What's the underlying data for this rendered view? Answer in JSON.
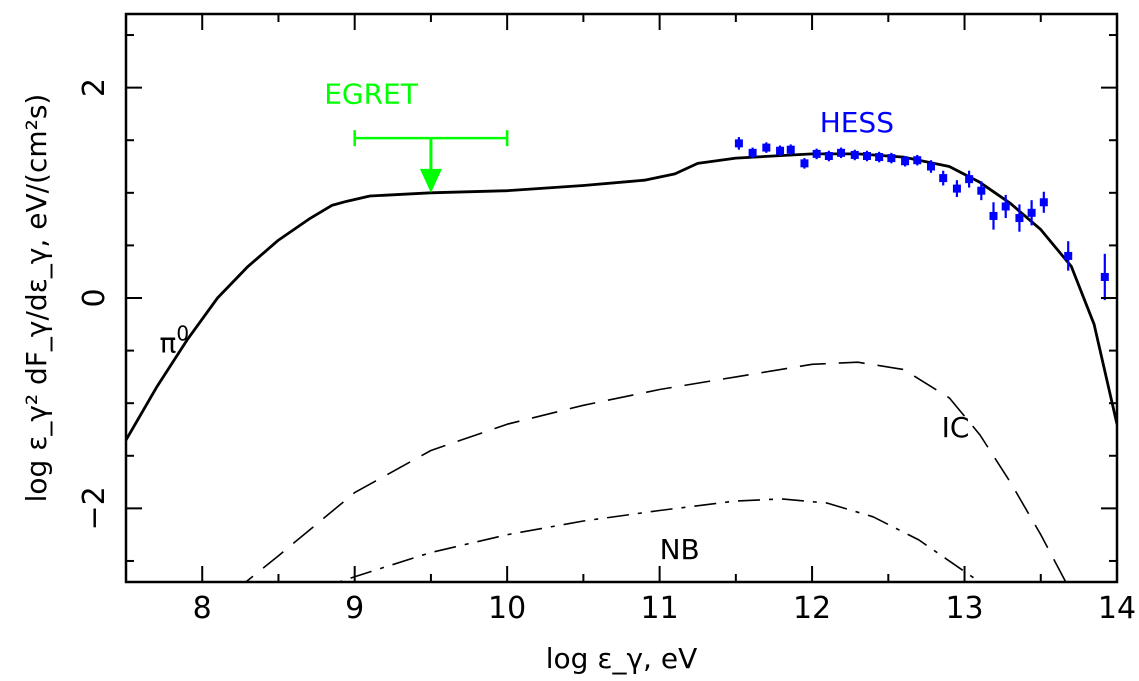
{
  "chart_data": {
    "type": "line",
    "xlabel": "log ε_γ, eV",
    "ylabel": "log ε_γ² dF_γ/dε_γ, eV/(cm²s)",
    "xlim": [
      7.5,
      14
    ],
    "ylim": [
      -2.7,
      2.7
    ],
    "x_ticks": [
      8,
      9,
      10,
      11,
      12,
      13,
      14
    ],
    "y_ticks": [
      -2,
      0,
      2
    ],
    "x_tick_labels": [
      "8",
      "9",
      "10",
      "11",
      "12",
      "13",
      "14"
    ],
    "y_tick_labels": [
      "−2",
      "0",
      "2"
    ],
    "grid": false,
    "series": [
      {
        "name": "π⁰",
        "style": "solid",
        "color": "#000000",
        "x": [
          7.5,
          7.7,
          7.9,
          8.1,
          8.3,
          8.5,
          8.7,
          8.85,
          8.95,
          9.1,
          9.5,
          10.0,
          10.5,
          10.9,
          11.1,
          11.25,
          11.5,
          12.0,
          12.3,
          12.6,
          12.9,
          13.1,
          13.3,
          13.5,
          13.7,
          13.85,
          14.0
        ],
        "y": [
          -1.35,
          -0.85,
          -0.4,
          0.0,
          0.3,
          0.55,
          0.75,
          0.88,
          0.92,
          0.97,
          1.0,
          1.02,
          1.07,
          1.12,
          1.18,
          1.28,
          1.33,
          1.37,
          1.37,
          1.34,
          1.25,
          1.1,
          0.9,
          0.65,
          0.3,
          -0.25,
          -1.2
        ]
      },
      {
        "name": "IC",
        "style": "dashed",
        "color": "#000000",
        "x": [
          8.2,
          8.5,
          9.0,
          9.5,
          10.0,
          10.5,
          11.0,
          11.5,
          12.0,
          12.3,
          12.6,
          12.9,
          13.1,
          13.3,
          13.5,
          13.7
        ],
        "y": [
          -2.8,
          -2.45,
          -1.85,
          -1.45,
          -1.2,
          -1.02,
          -0.87,
          -0.75,
          -0.63,
          -0.61,
          -0.68,
          -0.95,
          -1.3,
          -1.75,
          -2.25,
          -2.8
        ]
      },
      {
        "name": "NB",
        "style": "dashdot",
        "color": "#000000",
        "x": [
          8.7,
          9.0,
          9.5,
          10.0,
          10.5,
          11.0,
          11.5,
          11.8,
          12.1,
          12.4,
          12.7,
          13.0,
          13.2
        ],
        "y": [
          -2.8,
          -2.65,
          -2.42,
          -2.25,
          -2.12,
          -2.02,
          -1.93,
          -1.91,
          -1.95,
          -2.08,
          -2.3,
          -2.6,
          -2.8
        ]
      }
    ],
    "points": {
      "name": "HESS",
      "color": "#0000ff",
      "x": [
        11.52,
        11.61,
        11.7,
        11.79,
        11.86,
        11.95,
        12.03,
        12.11,
        12.19,
        12.28,
        12.36,
        12.44,
        12.52,
        12.61,
        12.69,
        12.78,
        12.86,
        12.95,
        13.03,
        13.11,
        13.19,
        13.27,
        13.36,
        13.44,
        13.52,
        13.68,
        13.92
      ],
      "y": [
        1.47,
        1.38,
        1.43,
        1.4,
        1.41,
        1.28,
        1.37,
        1.35,
        1.38,
        1.36,
        1.35,
        1.34,
        1.33,
        1.3,
        1.31,
        1.25,
        1.14,
        1.04,
        1.13,
        1.02,
        0.78,
        0.87,
        0.76,
        0.81,
        0.91,
        0.4,
        0.2
      ],
      "err": [
        0.06,
        0.05,
        0.05,
        0.05,
        0.05,
        0.05,
        0.05,
        0.05,
        0.05,
        0.05,
        0.05,
        0.05,
        0.05,
        0.05,
        0.05,
        0.06,
        0.07,
        0.08,
        0.08,
        0.09,
        0.13,
        0.11,
        0.13,
        0.12,
        0.1,
        0.14,
        0.22
      ]
    },
    "egret": {
      "name": "EGRET",
      "color": "#00ff00",
      "x_range": [
        9.0,
        10.0
      ],
      "y": 1.52,
      "arrow_x": 9.5,
      "arrow_to": 1.0
    },
    "annotations": [
      {
        "text": "EGRET",
        "x": 8.8,
        "y": 1.85,
        "color": "#00ff00"
      },
      {
        "text": "HESS",
        "x": 12.05,
        "y": 1.58,
        "color": "#0000ff"
      },
      {
        "text": "π",
        "sup": "0",
        "x": 7.72,
        "y": -0.52,
        "color": "#000000"
      },
      {
        "text": "IC",
        "x": 12.85,
        "y": -1.32,
        "color": "#000000"
      },
      {
        "text": "NB",
        "x": 11.0,
        "y": -2.48,
        "color": "#000000"
      }
    ]
  }
}
